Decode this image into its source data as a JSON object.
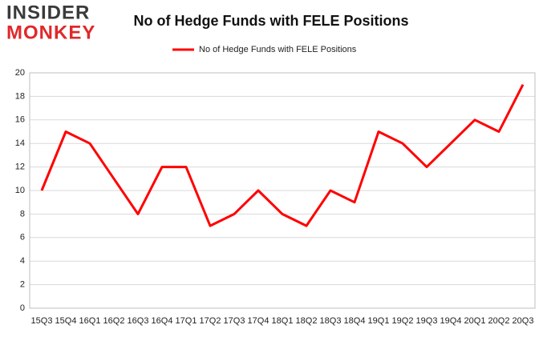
{
  "logo": {
    "top": "INSIDER",
    "bottom": "MONKEY"
  },
  "chart_data": {
    "type": "line",
    "title": "No of Hedge Funds with FELE Positions",
    "categories": [
      "15Q3",
      "15Q4",
      "16Q1",
      "16Q2",
      "16Q3",
      "16Q4",
      "17Q1",
      "17Q2",
      "17Q3",
      "17Q4",
      "18Q1",
      "18Q2",
      "18Q3",
      "18Q4",
      "19Q1",
      "19Q2",
      "19Q3",
      "19Q4",
      "20Q1",
      "20Q2",
      "20Q3"
    ],
    "series": [
      {
        "name": "No of Hedge Funds with FELE Positions",
        "color": "#ff0000",
        "values": [
          10,
          15,
          14,
          11,
          8,
          12,
          12,
          7,
          8,
          10,
          8,
          7,
          10,
          9,
          15,
          14,
          12,
          14,
          16,
          15,
          19
        ]
      }
    ],
    "ylim": [
      0,
      20
    ],
    "yticks": [
      0,
      2,
      4,
      6,
      8,
      10,
      12,
      14,
      16,
      18,
      20
    ],
    "grid": true,
    "legend": "top"
  }
}
